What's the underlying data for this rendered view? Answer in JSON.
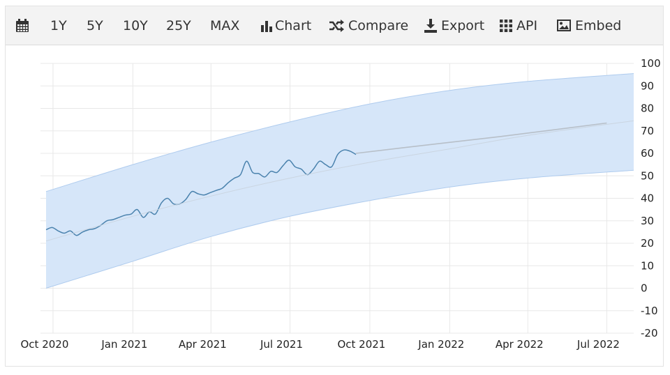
{
  "toolbar": {
    "calendar_icon": "calendar-icon",
    "range_1y": "1Y",
    "range_5y": "5Y",
    "range_10y": "10Y",
    "range_25y": "25Y",
    "range_max": "MAX",
    "chart_label": "Chart",
    "chart_icon": "bar-chart-icon",
    "compare_label": "Compare",
    "compare_icon": "shuffle-icon",
    "export_label": "Export",
    "export_icon": "download-icon",
    "api_label": "API",
    "api_icon": "grid-icon",
    "embed_label": "Embed",
    "embed_icon": "image-icon"
  },
  "colors": {
    "line": "#4a82ad",
    "band": "#d6e6f9",
    "band_edge": "#aecbee",
    "forecast": "#b7bfc8",
    "grid": "#e8e8e8"
  },
  "chart_data": {
    "type": "line",
    "title": "",
    "xlabel": "",
    "ylabel": "",
    "ylim": [
      -20,
      100
    ],
    "yticks": [
      100,
      90,
      80,
      70,
      60,
      50,
      40,
      30,
      20,
      10,
      0,
      -10,
      -20
    ],
    "y_axis_side": "right",
    "xticks": [
      {
        "label": "Oct 2020",
        "date": "2020-10-01"
      },
      {
        "label": "Jan 2021",
        "date": "2021-01-01"
      },
      {
        "label": "Apr 2021",
        "date": "2021-04-01"
      },
      {
        "label": "Jul 2021",
        "date": "2021-07-01"
      },
      {
        "label": "Oct 2021",
        "date": "2021-10-01"
      },
      {
        "label": "Jan 2022",
        "date": "2022-01-01"
      },
      {
        "label": "Apr 2022",
        "date": "2022-04-01"
      },
      {
        "label": "Jul 2022",
        "date": "2022-07-01"
      }
    ],
    "xlim": [
      "2020-09-23",
      "2022-08-01"
    ],
    "grid": true,
    "series": [
      {
        "role": "history",
        "points": [
          [
            "2020-09-23",
            26
          ],
          [
            "2020-09-30",
            27
          ],
          [
            "2020-10-07",
            25.5
          ],
          [
            "2020-10-14",
            24.5
          ],
          [
            "2020-10-21",
            25.5
          ],
          [
            "2020-10-28",
            23.5
          ],
          [
            "2020-11-04",
            25
          ],
          [
            "2020-11-11",
            26
          ],
          [
            "2020-11-18",
            26.5
          ],
          [
            "2020-11-25",
            28
          ],
          [
            "2020-12-02",
            30
          ],
          [
            "2020-12-09",
            30.5
          ],
          [
            "2020-12-16",
            31.5
          ],
          [
            "2020-12-23",
            32.5
          ],
          [
            "2020-12-30",
            33
          ],
          [
            "2021-01-06",
            35
          ],
          [
            "2021-01-13",
            31.5
          ],
          [
            "2021-01-20",
            34
          ],
          [
            "2021-01-27",
            33
          ],
          [
            "2021-02-03",
            38
          ],
          [
            "2021-02-10",
            40
          ],
          [
            "2021-02-17",
            37.5
          ],
          [
            "2021-02-24",
            37.5
          ],
          [
            "2021-03-03",
            39.5
          ],
          [
            "2021-03-10",
            43
          ],
          [
            "2021-03-17",
            42
          ],
          [
            "2021-03-24",
            41.5
          ],
          [
            "2021-03-31",
            42.5
          ],
          [
            "2021-04-07",
            43.5
          ],
          [
            "2021-04-14",
            44.5
          ],
          [
            "2021-04-21",
            47
          ],
          [
            "2021-04-28",
            49
          ],
          [
            "2021-05-05",
            50.5
          ],
          [
            "2021-05-12",
            56.5
          ],
          [
            "2021-05-19",
            51.5
          ],
          [
            "2021-05-26",
            51
          ],
          [
            "2021-06-02",
            49.5
          ],
          [
            "2021-06-09",
            52
          ],
          [
            "2021-06-16",
            51.5
          ],
          [
            "2021-06-23",
            54.5
          ],
          [
            "2021-06-30",
            57
          ],
          [
            "2021-07-07",
            54
          ],
          [
            "2021-07-14",
            53
          ],
          [
            "2021-07-21",
            50.5
          ],
          [
            "2021-07-28",
            53
          ],
          [
            "2021-08-04",
            56.5
          ],
          [
            "2021-08-11",
            55
          ],
          [
            "2021-08-18",
            54
          ],
          [
            "2021-08-25",
            59.5
          ],
          [
            "2021-09-01",
            61.5
          ],
          [
            "2021-09-08",
            61
          ],
          [
            "2021-09-15",
            59.5
          ]
        ]
      },
      {
        "role": "forecast",
        "points": [
          [
            "2021-09-15",
            60
          ],
          [
            "2021-12-01",
            63.5
          ],
          [
            "2022-03-01",
            67.5
          ],
          [
            "2022-07-01",
            73.5
          ]
        ]
      },
      {
        "role": "trend",
        "points": [
          [
            "2020-09-23",
            21
          ],
          [
            "2021-01-01",
            32
          ],
          [
            "2021-04-01",
            41
          ],
          [
            "2021-07-01",
            49
          ],
          [
            "2021-10-01",
            56
          ],
          [
            "2022-01-01",
            62
          ],
          [
            "2022-04-01",
            68
          ],
          [
            "2022-08-01",
            74.5
          ]
        ]
      }
    ],
    "band": {
      "upper": [
        [
          "2020-09-23",
          43
        ],
        [
          "2021-01-01",
          55
        ],
        [
          "2021-04-01",
          65
        ],
        [
          "2021-07-01",
          74
        ],
        [
          "2021-10-01",
          82
        ],
        [
          "2022-01-01",
          88
        ],
        [
          "2022-04-01",
          92
        ],
        [
          "2022-08-01",
          95.5
        ]
      ],
      "lower": [
        [
          "2020-09-23",
          0
        ],
        [
          "2021-01-01",
          12
        ],
        [
          "2021-04-01",
          23
        ],
        [
          "2021-07-01",
          32
        ],
        [
          "2021-10-01",
          39
        ],
        [
          "2022-01-01",
          45
        ],
        [
          "2022-04-01",
          49
        ],
        [
          "2022-08-01",
          52.5
        ]
      ]
    }
  }
}
